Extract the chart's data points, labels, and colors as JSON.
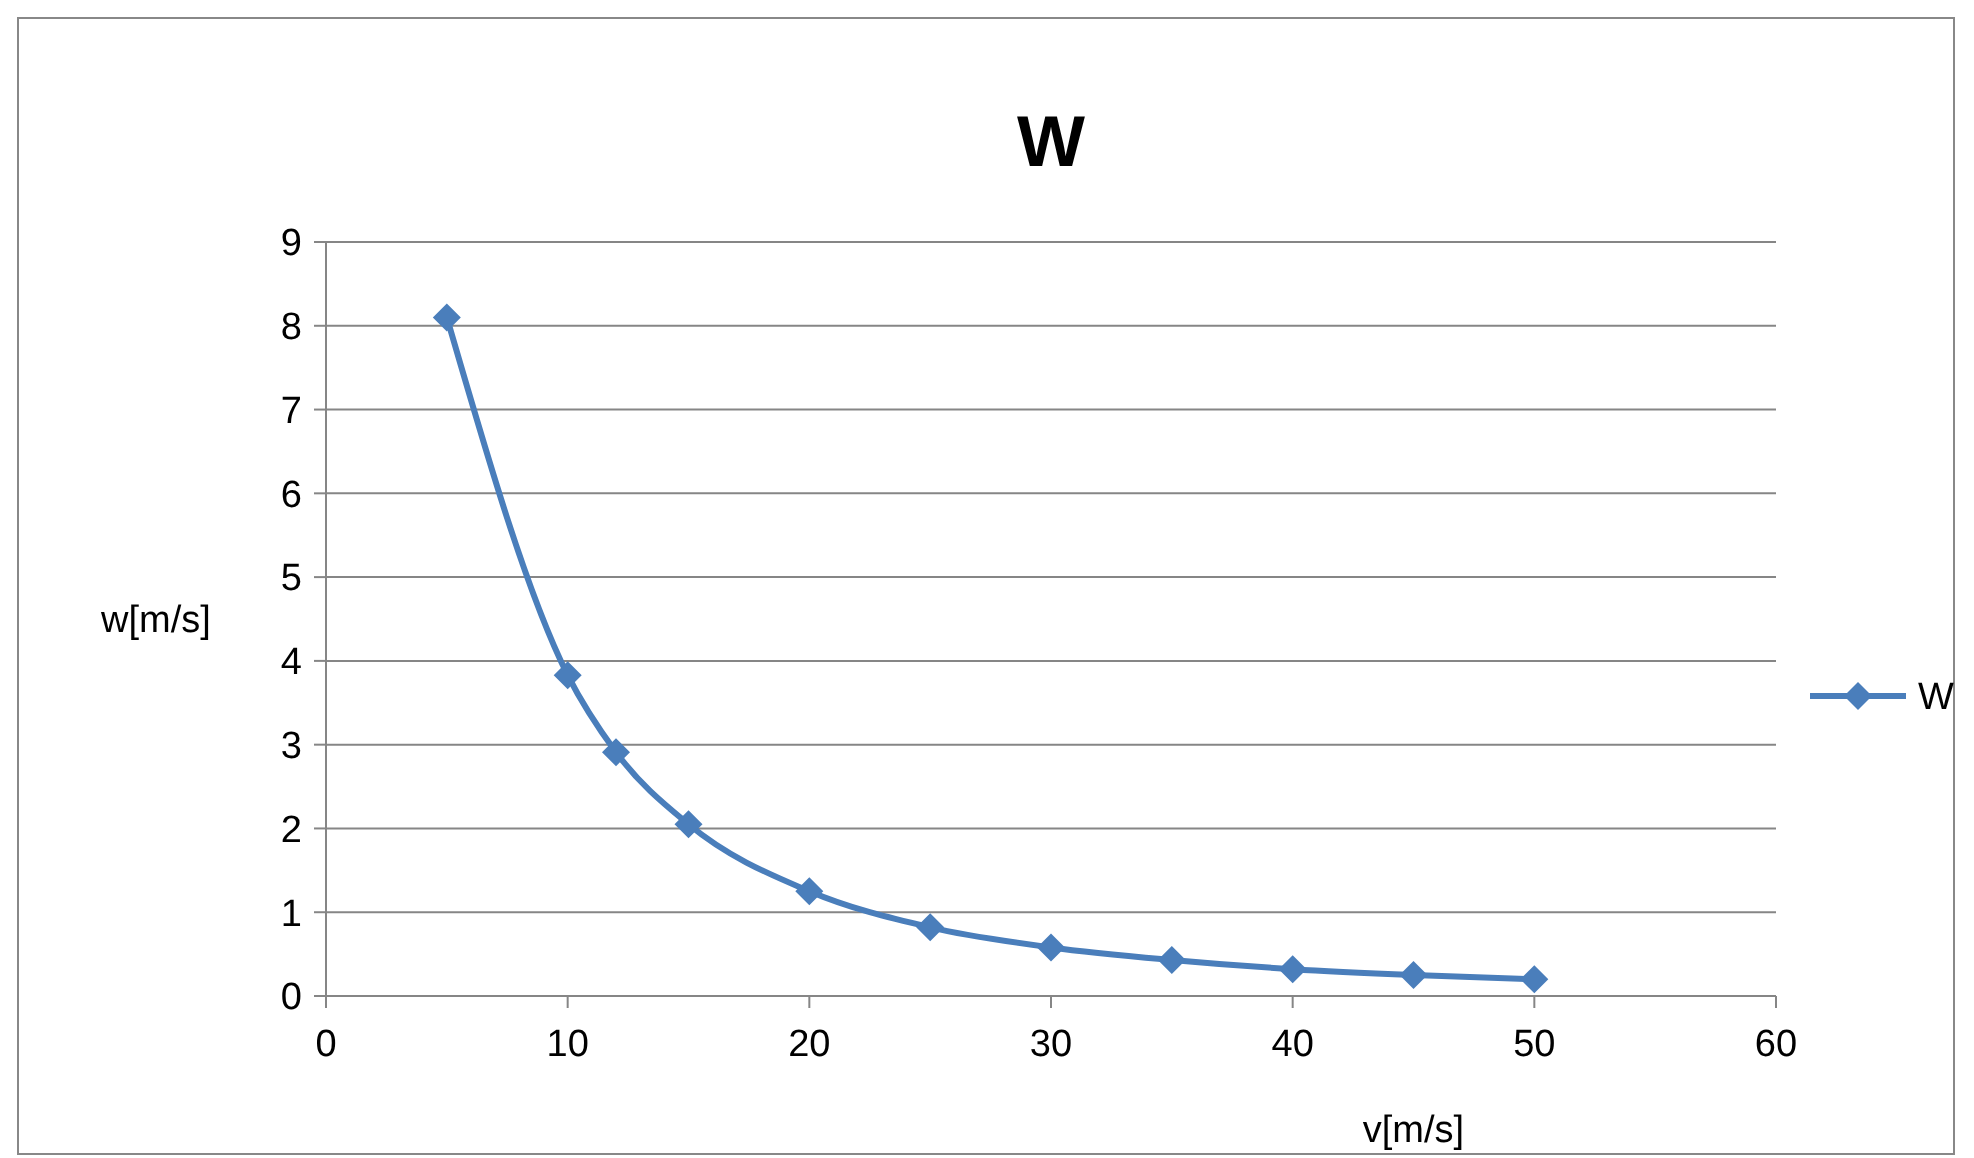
{
  "chart_data": {
    "type": "line",
    "title": "W",
    "xlabel": "v[m/s]",
    "ylabel": "w[m/s]",
    "x": [
      5,
      10,
      12,
      15,
      20,
      25,
      30,
      35,
      40,
      45,
      50
    ],
    "series": [
      {
        "name": "W",
        "color": "#4a7ebb",
        "values": [
          8.1,
          3.83,
          2.91,
          2.05,
          1.25,
          0.82,
          0.58,
          0.43,
          0.32,
          0.25,
          0.2
        ]
      }
    ],
    "xlim": [
      0,
      60
    ],
    "xticks": [
      0,
      10,
      20,
      30,
      40,
      50,
      60
    ],
    "ylim": [
      0,
      9
    ],
    "yticks": [
      0,
      1,
      2,
      3,
      4,
      5,
      6,
      7,
      8,
      9
    ],
    "grid": "y",
    "legend": "right",
    "marker": "diamond",
    "line_style": "solid"
  }
}
